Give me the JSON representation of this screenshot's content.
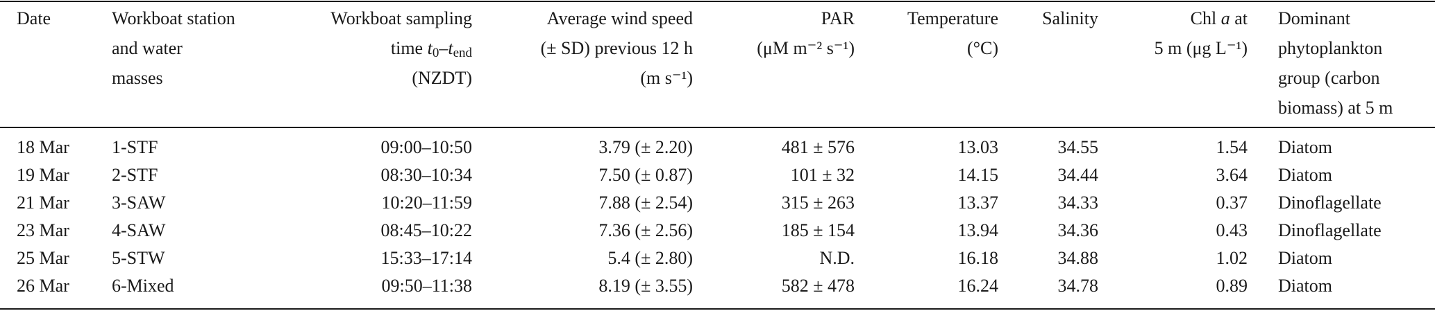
{
  "table": {
    "header": [
      [
        [
          "Date"
        ]
      ],
      [
        [
          "Workboat station"
        ],
        [
          "and water"
        ],
        [
          "masses"
        ]
      ],
      [
        [
          "Workboat sampling"
        ],
        [
          "time ",
          {
            "text": "t"
          },
          {
            "text": "0",
            "sub": true
          },
          "–",
          {
            "text": "t"
          },
          {
            "text": "end",
            "sub": true
          }
        ],
        [
          "(NZDT)"
        ]
      ],
      [
        [
          "Average wind speed"
        ],
        [
          "(± SD) previous 12 h"
        ],
        [
          "(m s⁻¹)"
        ]
      ],
      [
        [
          "PAR"
        ],
        [
          "(μM m⁻² s⁻¹)"
        ]
      ],
      [
        [
          "Temperature"
        ],
        [
          "(°C)"
        ]
      ],
      [
        [
          "Salinity"
        ]
      ],
      [
        [
          "Chl ",
          {
            "text": "a",
            "italic": true
          },
          " at"
        ],
        [
          "5 m (μg L⁻¹)"
        ]
      ],
      [
        [
          "Dominant"
        ],
        [
          "phytoplankton"
        ],
        [
          "group (carbon"
        ],
        [
          "biomass) at 5 m"
        ]
      ]
    ],
    "rows": [
      [
        "18 Mar",
        "1-STF",
        "09:00–10:50",
        "3.79 (± 2.20)",
        "481 ± 576",
        "13.03",
        "34.55",
        "1.54",
        "Diatom"
      ],
      [
        "19 Mar",
        "2-STF",
        "08:30–10:34",
        "7.50 (± 0.87)",
        "101 ± 32",
        "14.15",
        "34.44",
        "3.64",
        "Diatom"
      ],
      [
        "21 Mar",
        "3-SAW",
        "10:20–11:59",
        "7.88 (± 2.54)",
        "315 ± 263",
        "13.37",
        "34.33",
        "0.37",
        "Dinoflagellate"
      ],
      [
        "23 Mar",
        "4-SAW",
        "08:45–10:22",
        "7.36 (± 2.56)",
        "185 ± 154",
        "13.94",
        "34.36",
        "0.43",
        "Dinoflagellate"
      ],
      [
        "25 Mar",
        "5-STW",
        "15:33–17:14",
        "5.4 (± 2.80)",
        "N.D.",
        "16.18",
        "34.88",
        "1.02",
        "Diatom"
      ],
      [
        "26 Mar",
        "6-Mixed",
        "09:50–11:38",
        "8.19 (± 3.55)",
        "582 ± 478",
        "16.24",
        "34.78",
        "0.89",
        "Diatom"
      ]
    ]
  }
}
